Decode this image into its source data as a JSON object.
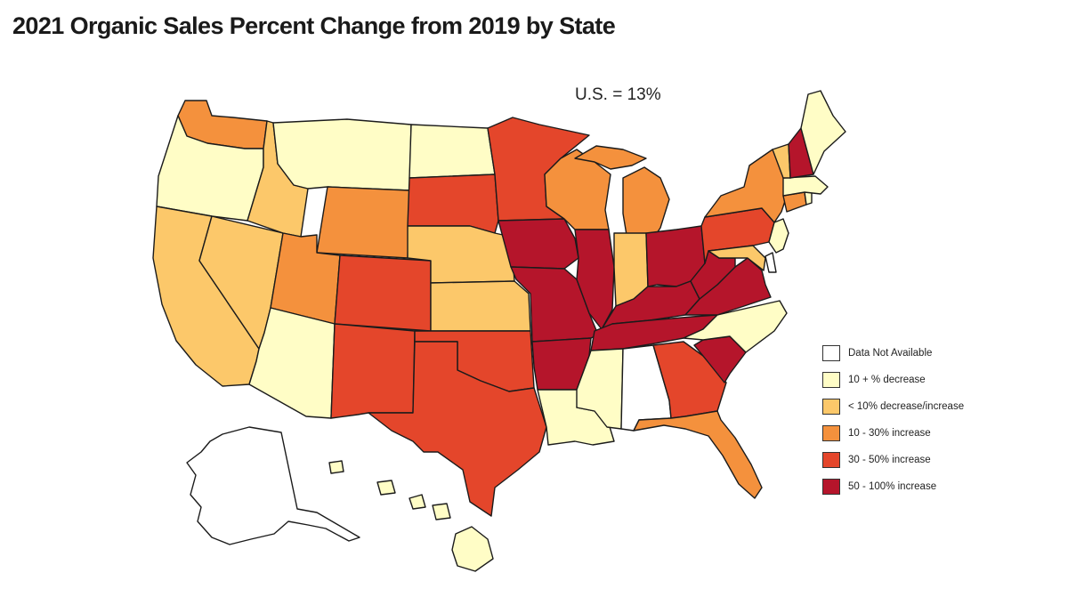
{
  "title": "2021 Organic Sales Percent Change from 2019 by State",
  "us_note": "U.S. = 13%",
  "palette": {
    "na": "#ffffff",
    "dec10": "#fffdc6",
    "flat": "#fcc86a",
    "inc10_30": "#f4913d",
    "inc30_50": "#e4462b",
    "inc50_100": "#b5152b"
  },
  "legend": [
    {
      "key": "na",
      "label": "Data Not Available"
    },
    {
      "key": "dec10",
      "label": "10 + % decrease"
    },
    {
      "key": "flat",
      "label": "< 10% decrease/increase"
    },
    {
      "key": "inc10_30",
      "label": "10 - 30% increase"
    },
    {
      "key": "inc30_50",
      "label": "30 - 50% increase"
    },
    {
      "key": "inc50_100",
      "label": "50 - 100% increase"
    }
  ],
  "states": {
    "WA": "inc10_30",
    "OR": "dec10",
    "CA": "flat",
    "NV": "flat",
    "ID": "flat",
    "MT": "dec10",
    "WY": "inc10_30",
    "UT": "inc10_30",
    "AZ": "dec10",
    "CO": "inc30_50",
    "NM": "inc30_50",
    "ND": "dec10",
    "SD": "inc30_50",
    "NE": "flat",
    "KS": "flat",
    "OK": "inc30_50",
    "TX": "inc30_50",
    "MN": "inc30_50",
    "IA": "inc50_100",
    "MO": "inc50_100",
    "AR": "inc50_100",
    "LA": "dec10",
    "WI": "inc10_30",
    "IL": "inc50_100",
    "MI": "inc10_30",
    "IN": "flat",
    "OH": "inc50_100",
    "KY": "inc50_100",
    "TN": "inc50_100",
    "MS": "dec10",
    "AL": "na",
    "GA": "inc30_50",
    "FL": "inc10_30",
    "SC": "inc50_100",
    "NC": "dec10",
    "VA": "inc50_100",
    "WV": "inc50_100",
    "PA": "inc30_50",
    "NY": "inc10_30",
    "VT": "flat",
    "NH": "inc50_100",
    "ME": "dec10",
    "MA": "dec10",
    "CT": "inc10_30",
    "RI": "dec10",
    "NJ": "dec10",
    "DE": "na",
    "MD": "flat",
    "AK": "na",
    "HI": "dec10"
  }
}
